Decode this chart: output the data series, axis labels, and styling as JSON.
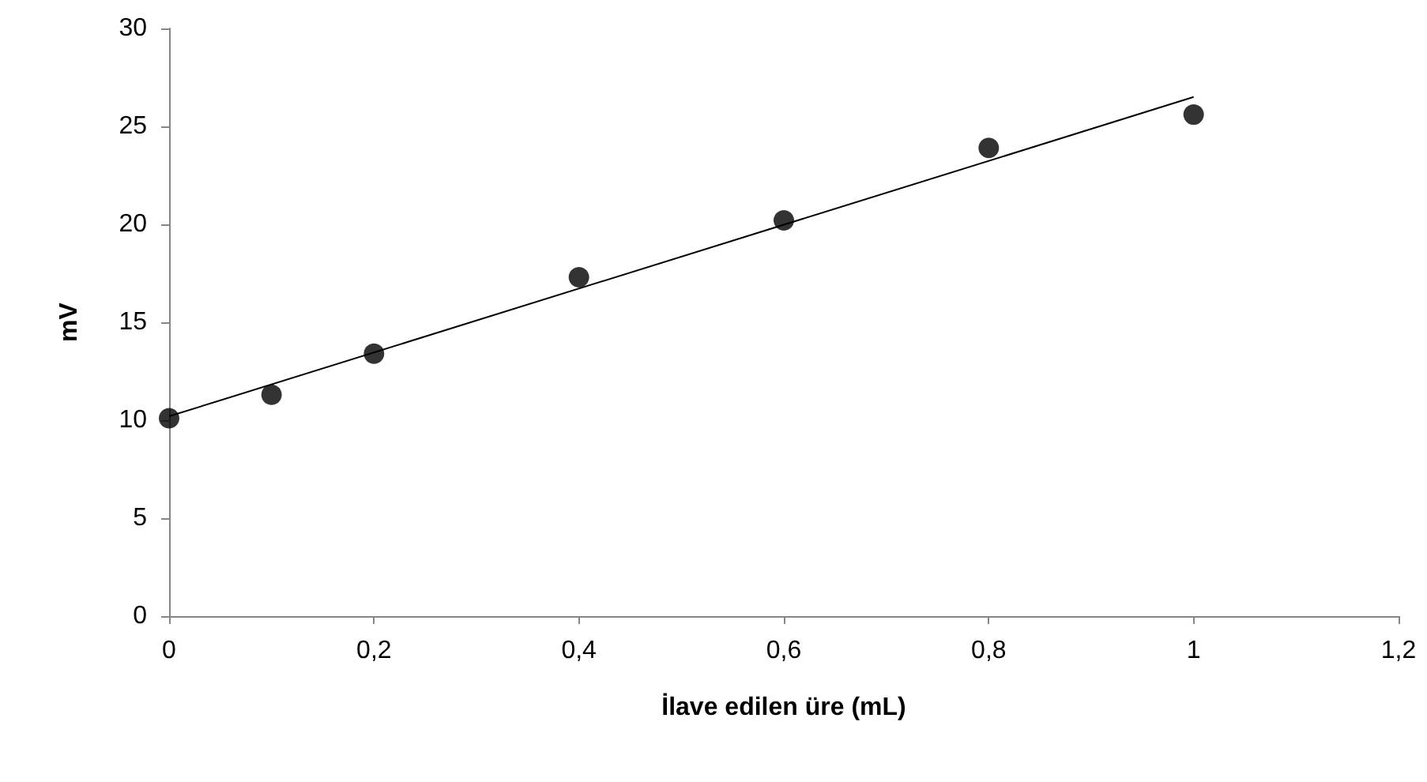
{
  "chart_data": {
    "type": "scatter",
    "xlabel": "İlave edilen üre (mL)",
    "ylabel": "mV",
    "x": [
      0,
      0.1,
      0.2,
      0.4,
      0.6,
      0.8,
      1
    ],
    "series": [
      {
        "color": "#000000",
        "marker": "circle",
        "values": [
          10.1,
          11.3,
          13.4,
          17.3,
          20.2,
          23.9,
          25.6
        ]
      },
      {
        "type": "line",
        "color": "#000000",
        "marker": "none",
        "x": [
          0,
          1
        ],
        "values": [
          10.2,
          26.5
        ]
      }
    ],
    "xlim": [
      0,
      1.2
    ],
    "xticks": [
      0,
      {
        "value": 0.2,
        "label": "0,2"
      },
      {
        "value": 0.4,
        "label": "0,4"
      },
      {
        "value": 0.6,
        "label": "0,6"
      },
      {
        "value": 0.8,
        "label": "0,8"
      },
      1,
      {
        "value": 1.2,
        "label": "1,2"
      }
    ],
    "ylim": [
      0,
      30
    ],
    "yticks": [
      0,
      5,
      10,
      15,
      20,
      25,
      30
    ],
    "grid": false
  }
}
